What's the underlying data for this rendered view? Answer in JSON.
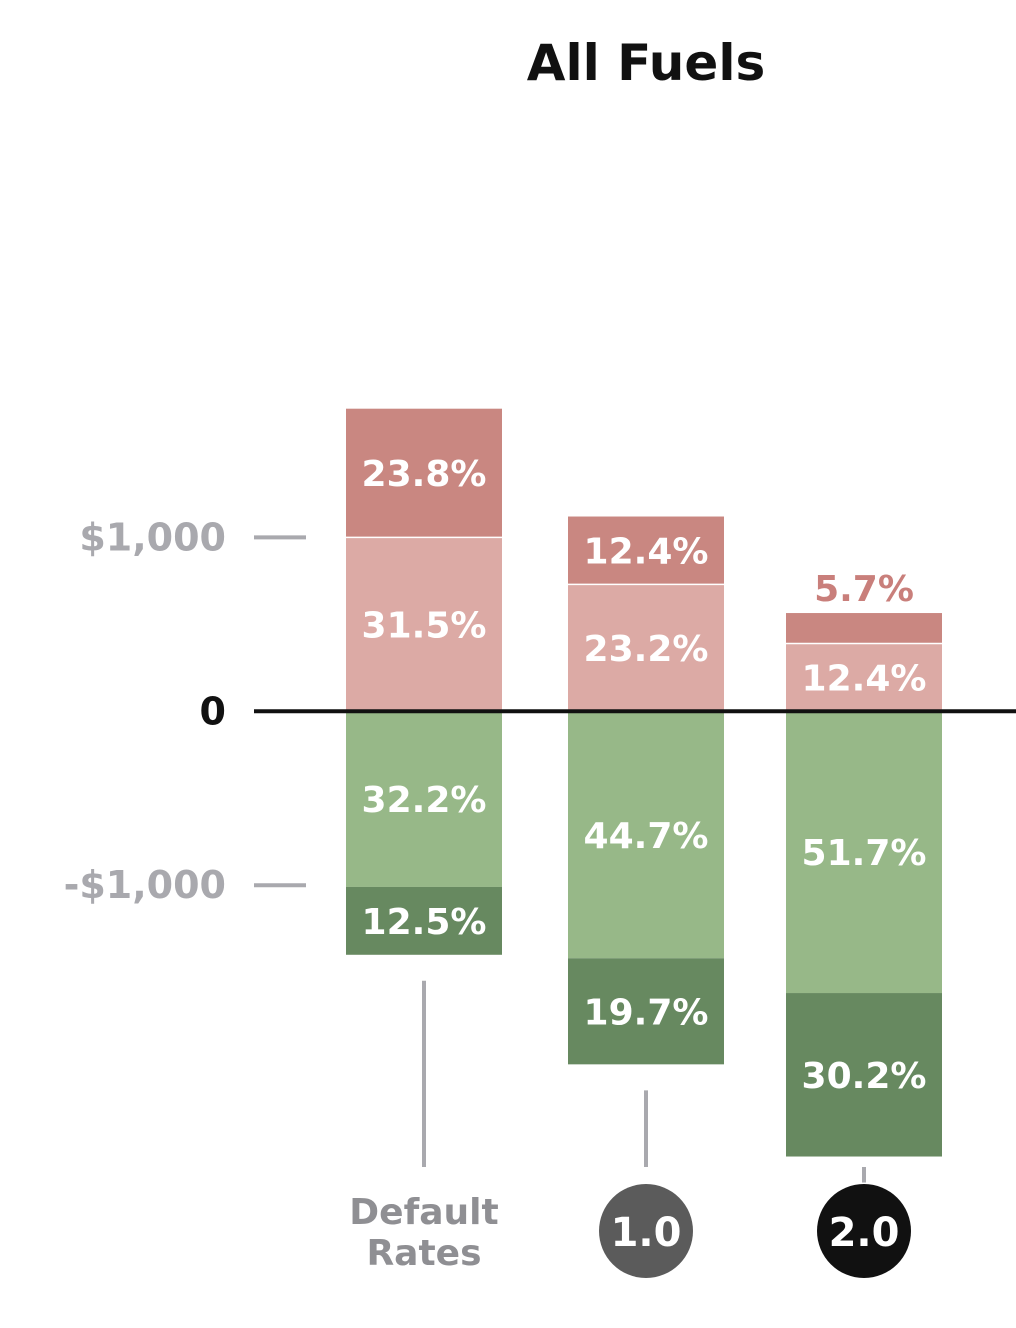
{
  "chart_data": {
    "type": "bar",
    "stacked": true,
    "title": "All Fuels",
    "y_tick_labels": [
      "$1,000",
      "0",
      "-$1,000"
    ],
    "y_ticks": [
      1000,
      0,
      -1000
    ],
    "ylim": [
      -2580,
      3400
    ],
    "categories": [
      "Default Rates",
      "1.0",
      "2.0"
    ],
    "category_styles": [
      "text",
      "badge",
      "badge"
    ],
    "badge_colors": [
      "",
      "#5b5b5b",
      "#111111"
    ],
    "colors": {
      "pos_outer": "#c98781",
      "pos_inner": "#dcaaa5",
      "neg_inner": "#97b888",
      "neg_outer": "#678960",
      "axis": "#111111",
      "tick": "#a9a9ae",
      "leader": "#a9a9ae"
    },
    "series": [
      {
        "values": [
          1000,
          730,
          390
        ],
        "labels": [
          "31.5%",
          "23.2%",
          "12.4%"
        ]
      },
      {
        "values": [
          740,
          390,
          175
        ],
        "labels": [
          "23.8%",
          "12.4%",
          "5.7%"
        ]
      },
      {
        "values": [
          -1010,
          -1420,
          -1620
        ],
        "labels": [
          "32.2%",
          "44.7%",
          "51.7%"
        ]
      },
      {
        "values": [
          -390,
          -610,
          -940
        ],
        "labels": [
          "12.5%",
          "19.7%",
          "30.2%"
        ]
      }
    ]
  }
}
